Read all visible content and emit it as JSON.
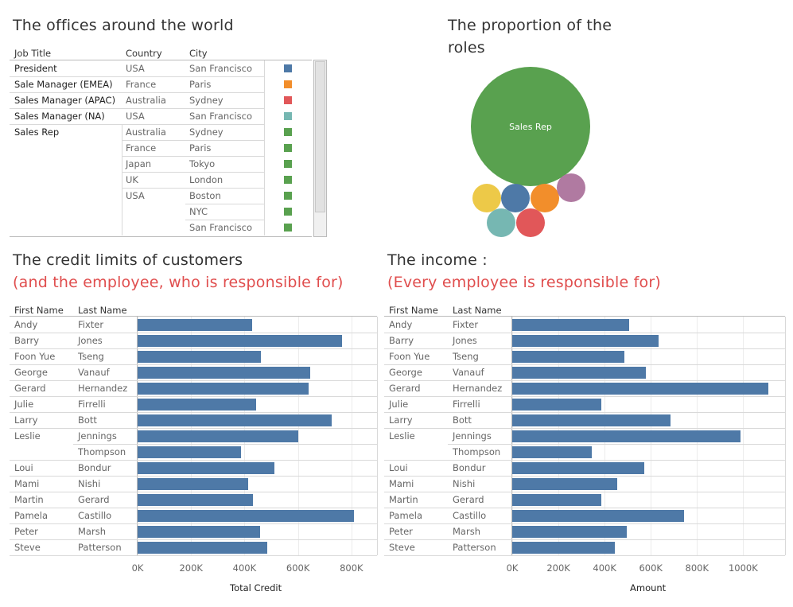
{
  "offices": {
    "title": "The offices around the world",
    "headers": {
      "job_title": "Job Title",
      "country": "Country",
      "city": "City"
    },
    "rows": [
      {
        "job": "President",
        "country": "USA",
        "city": "San Francisco",
        "color": "#4e79a7"
      },
      {
        "job": "Sale Manager (EMEA)",
        "country": "France",
        "city": "Paris",
        "color": "#f28e2b"
      },
      {
        "job": "Sales Manager (APAC)",
        "country": "Australia",
        "city": "Sydney",
        "color": "#e15759"
      },
      {
        "job": "Sales Manager (NA)",
        "country": "USA",
        "city": "San Francisco",
        "color": "#76b7b2"
      },
      {
        "job": "Sales Rep",
        "country": "Australia",
        "city": "Sydney",
        "color": "#59a14f"
      },
      {
        "job": "",
        "country": "France",
        "city": "Paris",
        "color": "#59a14f"
      },
      {
        "job": "",
        "country": "Japan",
        "city": "Tokyo",
        "color": "#59a14f"
      },
      {
        "job": "",
        "country": "UK",
        "city": "London",
        "color": "#59a14f"
      },
      {
        "job": "",
        "country": "USA",
        "city": "Boston",
        "color": "#59a14f"
      },
      {
        "job": "",
        "country": "",
        "city": "NYC",
        "color": "#59a14f"
      },
      {
        "job": "",
        "country": "",
        "city": "San Francisco",
        "color": "#59a14f"
      }
    ]
  },
  "roles": {
    "title_line1": "The proportion of the",
    "title_line2": "roles",
    "bubble_label": "Sales Rep",
    "bubble_colors": [
      "#59a14f",
      "#edc948",
      "#4e79a7",
      "#f28e2b",
      "#b07aa1",
      "#76b7b2",
      "#e15759"
    ]
  },
  "credit": {
    "title": "The credit limits of customers",
    "subtitle": "(and the employee, who is responsible for)",
    "headers": {
      "first": "First Name",
      "last": "Last Name"
    },
    "axis_label": "Total Credit",
    "ticks": [
      "0K",
      "200K",
      "400K",
      "600K",
      "800K"
    ]
  },
  "income": {
    "title": "The income :",
    "subtitle": "(Every employee is responsible for)",
    "headers": {
      "first": "First Name",
      "last": "Last Name"
    },
    "axis_label": "Amount",
    "ticks": [
      "0K",
      "200K",
      "400K",
      "600K",
      "800K",
      "1000K"
    ]
  },
  "chart_data": [
    {
      "type": "bar",
      "title": "The credit limits of customers",
      "xlabel": "Total Credit",
      "xlim": [
        0,
        860000
      ],
      "color": "#4e79a7",
      "categories": [
        {
          "first": "Andy",
          "last": "Fixter"
        },
        {
          "first": "Barry",
          "last": "Jones"
        },
        {
          "first": "Foon Yue",
          "last": "Tseng"
        },
        {
          "first": "George",
          "last": "Vanauf"
        },
        {
          "first": "Gerard",
          "last": "Hernandez"
        },
        {
          "first": "Julie",
          "last": "Firrelli"
        },
        {
          "first": "Larry",
          "last": "Bott"
        },
        {
          "first": "Leslie",
          "last": "Jennings"
        },
        {
          "first": "",
          "last": "Thompson"
        },
        {
          "first": "Loui",
          "last": "Bondur"
        },
        {
          "first": "Mami",
          "last": "Nishi"
        },
        {
          "first": "Martin",
          "last": "Gerard"
        },
        {
          "first": "Pamela",
          "last": "Castillo"
        },
        {
          "first": "Peter",
          "last": "Marsh"
        },
        {
          "first": "Steve",
          "last": "Patterson"
        }
      ],
      "values": [
        428000,
        765000,
        462000,
        645000,
        640000,
        442000,
        725000,
        600000,
        388000,
        513000,
        415000,
        430000,
        810000,
        458000,
        485000
      ]
    },
    {
      "type": "bar",
      "title": "The income :",
      "xlabel": "Amount",
      "xlim": [
        0,
        1140000
      ],
      "color": "#4e79a7",
      "categories": [
        {
          "first": "Andy",
          "last": "Fixter"
        },
        {
          "first": "Barry",
          "last": "Jones"
        },
        {
          "first": "Foon Yue",
          "last": "Tseng"
        },
        {
          "first": "George",
          "last": "Vanauf"
        },
        {
          "first": "Gerard",
          "last": "Hernandez"
        },
        {
          "first": "Julie",
          "last": "Firrelli"
        },
        {
          "first": "Larry",
          "last": "Bott"
        },
        {
          "first": "Leslie",
          "last": "Jennings"
        },
        {
          "first": "",
          "last": "Thompson"
        },
        {
          "first": "Loui",
          "last": "Bondur"
        },
        {
          "first": "Mami",
          "last": "Nishi"
        },
        {
          "first": "Martin",
          "last": "Gerard"
        },
        {
          "first": "Pamela",
          "last": "Castillo"
        },
        {
          "first": "Peter",
          "last": "Marsh"
        },
        {
          "first": "Steve",
          "last": "Patterson"
        }
      ],
      "values": [
        505000,
        635000,
        485000,
        580000,
        1110000,
        385000,
        685000,
        990000,
        345000,
        570000,
        455000,
        385000,
        745000,
        495000,
        445000
      ]
    }
  ]
}
